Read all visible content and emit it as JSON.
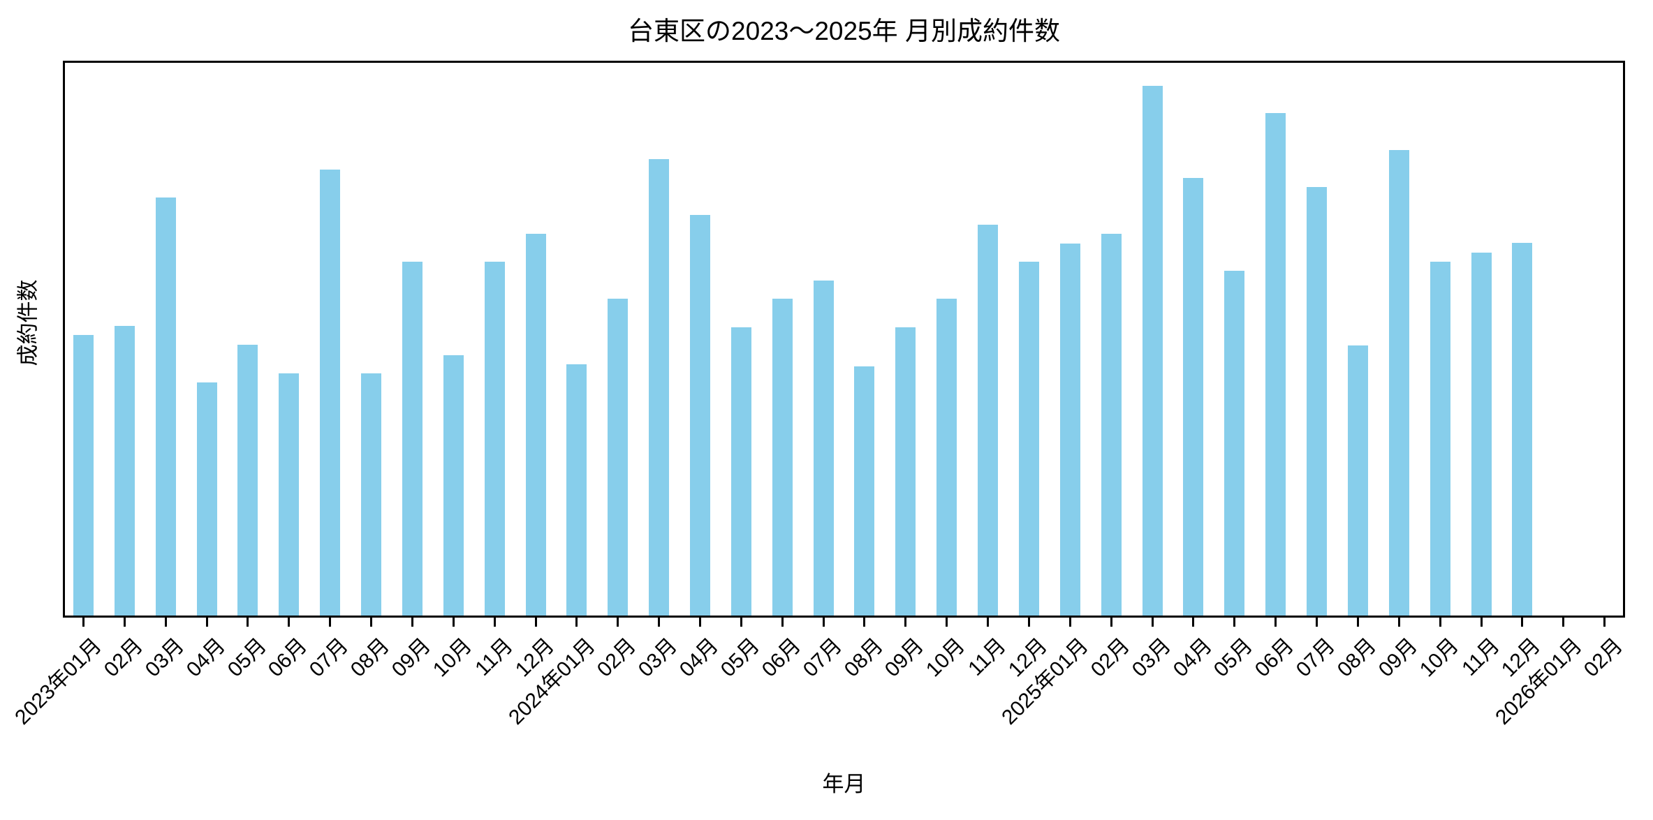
{
  "figure": {
    "background_color": "#ffffff",
    "text_color": "#000000",
    "spine_color": "#000000"
  },
  "chart_data": {
    "type": "bar",
    "title": "台東区の2023〜2025年 月別成約件数",
    "xlabel": "年月",
    "ylabel": "成約件数",
    "legend": "none",
    "grid": false,
    "bar_color": "#87CEEB",
    "bar_width_ratio": 0.5,
    "x_tick_rotation_deg": 45,
    "y_axis_tick_labels_visible": false,
    "value_scale_note": "No numeric y-axis tick labels are shown in the chart; values are bar heights normalized to the y-axis full height (0–1). Tallest bar (2025年03月) reaches ~0.95 of the axis.",
    "ylim": [
      0,
      1
    ],
    "categories": [
      "2023-01",
      "2023-02",
      "2023-03",
      "2023-04",
      "2023-05",
      "2023-06",
      "2023-07",
      "2023-08",
      "2023-09",
      "2023-10",
      "2023-11",
      "2023-12",
      "2024-01",
      "2024-02",
      "2024-03",
      "2024-04",
      "2024-05",
      "2024-06",
      "2024-07",
      "2024-08",
      "2024-09",
      "2024-10",
      "2024-11",
      "2024-12",
      "2025-01",
      "2025-02",
      "2025-03",
      "2025-04",
      "2025-05",
      "2025-06",
      "2025-07",
      "2025-08",
      "2025-09",
      "2025-10",
      "2025-11",
      "2025-12"
    ],
    "values": [
      0.504,
      0.52,
      0.751,
      0.418,
      0.486,
      0.435,
      0.801,
      0.435,
      0.635,
      0.467,
      0.635,
      0.686,
      0.451,
      0.569,
      0.82,
      0.719,
      0.518,
      0.569,
      0.601,
      0.447,
      0.518,
      0.569,
      0.702,
      0.635,
      0.668,
      0.685,
      0.951,
      0.786,
      0.619,
      0.902,
      0.769,
      0.485,
      0.836,
      0.635,
      0.652,
      0.669
    ],
    "x_tick_labels": [
      "2023年01月",
      "02月",
      "03月",
      "04月",
      "05月",
      "06月",
      "07月",
      "08月",
      "09月",
      "10月",
      "11月",
      "12月",
      "2024年01月",
      "02月",
      "03月",
      "04月",
      "05月",
      "06月",
      "07月",
      "08月",
      "09月",
      "10月",
      "11月",
      "12月",
      "2025年01月",
      "02月",
      "03月",
      "04月",
      "05月",
      "06月",
      "07月",
      "08月",
      "09月",
      "10月",
      "11月",
      "12月",
      "2026年01月",
      "02月"
    ],
    "empty_trailing_ticks": [
      "2026年01月",
      "02月"
    ]
  }
}
